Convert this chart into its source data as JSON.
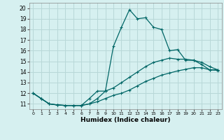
{
  "xlabel": "Humidex (Indice chaleur)",
  "bg_color": "#d6f0f0",
  "grid_color": "#b8d8d8",
  "line_color": "#006666",
  "xlim": [
    -0.5,
    23.5
  ],
  "ylim": [
    10.5,
    20.5
  ],
  "xticks": [
    0,
    1,
    2,
    3,
    4,
    5,
    6,
    7,
    8,
    9,
    10,
    11,
    12,
    13,
    14,
    15,
    16,
    17,
    18,
    19,
    20,
    21,
    22,
    23
  ],
  "yticks": [
    11,
    12,
    13,
    14,
    15,
    16,
    17,
    18,
    19,
    20
  ],
  "line1_x": [
    0,
    1,
    2,
    3,
    4,
    5,
    6,
    7,
    8,
    9,
    10,
    11,
    12,
    13,
    14,
    15,
    16,
    17,
    18,
    19,
    20,
    21,
    22,
    23
  ],
  "line1_y": [
    12.0,
    11.5,
    11.0,
    10.9,
    10.85,
    10.85,
    10.85,
    11.5,
    12.2,
    12.2,
    16.4,
    18.2,
    19.85,
    19.0,
    19.1,
    18.2,
    18.0,
    16.0,
    16.1,
    15.1,
    15.1,
    14.7,
    14.2,
    14.2
  ],
  "line2_x": [
    0,
    1,
    2,
    3,
    4,
    5,
    6,
    7,
    8,
    9,
    10,
    11,
    12,
    13,
    14,
    15,
    16,
    17,
    18,
    19,
    20,
    21,
    22,
    23
  ],
  "line2_y": [
    12.0,
    11.5,
    11.0,
    10.9,
    10.85,
    10.85,
    10.85,
    11.0,
    11.5,
    12.2,
    12.5,
    13.0,
    13.5,
    14.0,
    14.5,
    14.9,
    15.1,
    15.3,
    15.2,
    15.2,
    15.1,
    14.9,
    14.5,
    14.2
  ],
  "line3_x": [
    0,
    1,
    2,
    3,
    4,
    5,
    6,
    7,
    8,
    9,
    10,
    11,
    12,
    13,
    14,
    15,
    16,
    17,
    18,
    19,
    20,
    21,
    22,
    23
  ],
  "line3_y": [
    12.0,
    11.5,
    11.0,
    10.9,
    10.85,
    10.85,
    10.85,
    11.0,
    11.2,
    11.5,
    11.8,
    12.0,
    12.3,
    12.7,
    13.1,
    13.4,
    13.7,
    13.9,
    14.1,
    14.25,
    14.4,
    14.4,
    14.2,
    14.15
  ]
}
